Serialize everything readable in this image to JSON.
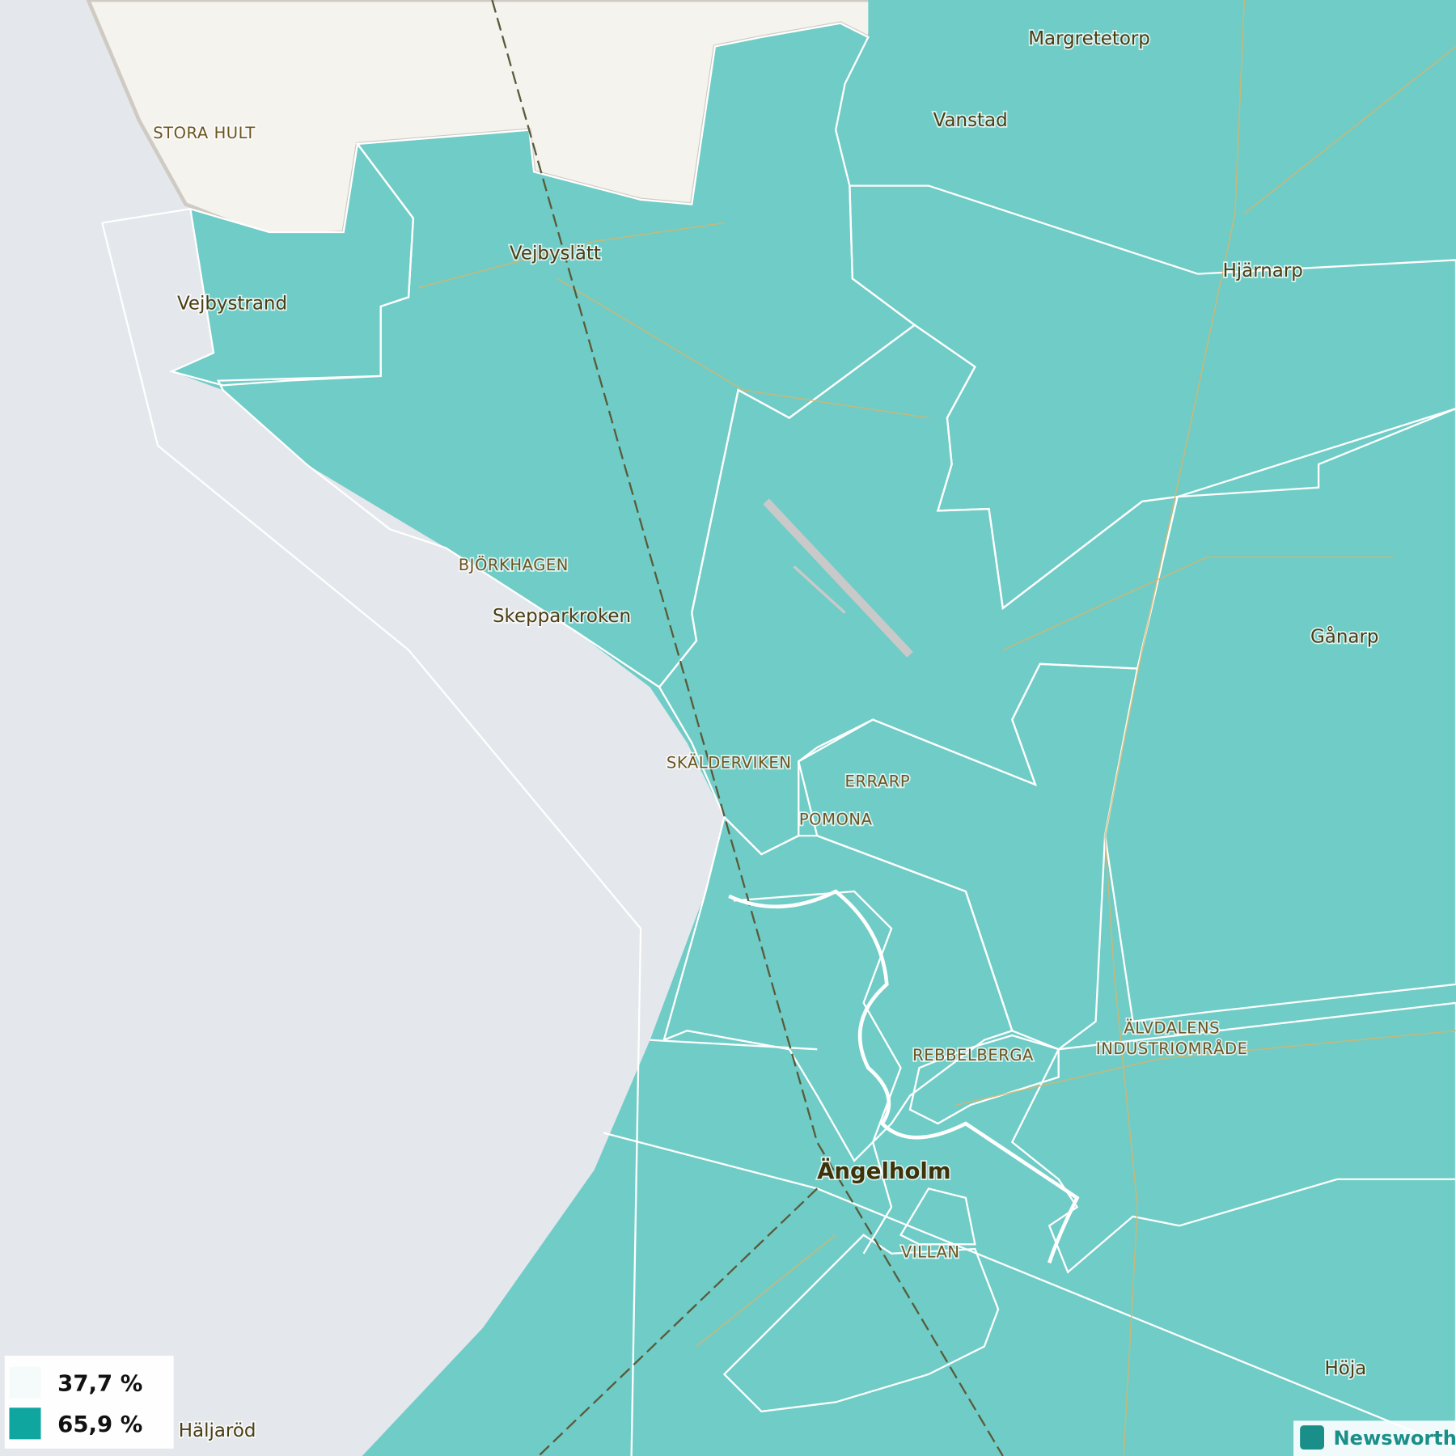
{
  "map": {
    "places": [
      {
        "label": "Margretetorp"
      },
      {
        "label": "Vanstad"
      },
      {
        "label": "STORA HULT"
      },
      {
        "label": "Vejbyslätt"
      },
      {
        "label": "Hjärnarp"
      },
      {
        "label": "Vejbystrand"
      },
      {
        "label": "BJÖRKHAGEN"
      },
      {
        "label": "Skepparkroken"
      },
      {
        "label": "Gånarp"
      },
      {
        "label": "SKÄLDERVIKEN"
      },
      {
        "label": "ERRARP"
      },
      {
        "label": "POMONA"
      },
      {
        "label": "ÄLVDALENS"
      },
      {
        "label": "INDUSTRIOMRÅDE"
      },
      {
        "label": "REBBELBERGA"
      },
      {
        "label": "Ängelholm"
      },
      {
        "label": "VILLAN"
      },
      {
        "label": "Höja"
      },
      {
        "label": "Häljaröd"
      }
    ],
    "legend": {
      "items": [
        {
          "label": "37,7 %"
        },
        {
          "label": "65,9 %"
        }
      ]
    },
    "credit": "Newsworthy"
  }
}
